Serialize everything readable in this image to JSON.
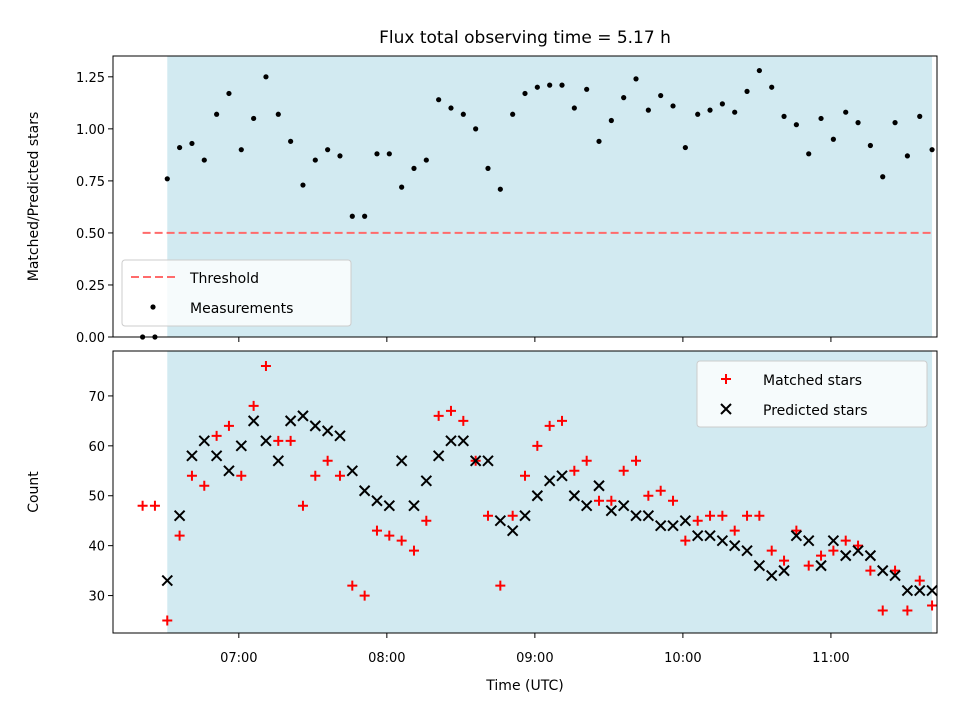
{
  "title": "Flux total observing time = 5.17 h",
  "colors": {
    "shade": "#add8e6",
    "threshold": "#ff6b6b",
    "matched": "#ff0000",
    "predicted": "#000000"
  },
  "chart_data": [
    {
      "type": "scatter",
      "ylabel": "Matched/Predicted stars",
      "xlabel": "",
      "xlim": [
        "06:09",
        "11:43"
      ],
      "ylim": [
        0,
        1.35
      ],
      "yticks": [
        "0.00",
        "0.25",
        "0.50",
        "0.75",
        "1.00",
        "1.25"
      ],
      "xticks": [
        "07:00",
        "08:00",
        "09:00",
        "10:00",
        "11:00"
      ],
      "observing_window": [
        "06:31",
        "11:41"
      ],
      "legend": {
        "location": "lower-left",
        "threshold_label": "Threshold",
        "measurements_label": "Measurements"
      },
      "threshold": {
        "value": 0.5,
        "x_start": "06:21",
        "x_end": "11:41"
      },
      "series": [
        {
          "name": "Measurements",
          "points": [
            [
              "06:21",
              0.0
            ],
            [
              "06:26",
              0.0
            ],
            [
              "06:31",
              0.76
            ],
            [
              "06:36",
              0.91
            ],
            [
              "06:41",
              0.93
            ],
            [
              "06:46",
              0.85
            ],
            [
              "06:51",
              1.07
            ],
            [
              "06:56",
              1.17
            ],
            [
              "07:01",
              0.9
            ],
            [
              "07:06",
              1.05
            ],
            [
              "07:11",
              1.25
            ],
            [
              "07:16",
              1.07
            ],
            [
              "07:21",
              0.94
            ],
            [
              "07:26",
              0.73
            ],
            [
              "07:31",
              0.85
            ],
            [
              "07:36",
              0.9
            ],
            [
              "07:41",
              0.87
            ],
            [
              "07:46",
              0.58
            ],
            [
              "07:51",
              0.58
            ],
            [
              "07:56",
              0.88
            ],
            [
              "08:01",
              0.88
            ],
            [
              "08:06",
              0.72
            ],
            [
              "08:11",
              0.81
            ],
            [
              "08:16",
              0.85
            ],
            [
              "08:21",
              1.14
            ],
            [
              "08:26",
              1.1
            ],
            [
              "08:31",
              1.07
            ],
            [
              "08:36",
              1.0
            ],
            [
              "08:41",
              0.81
            ],
            [
              "08:46",
              0.71
            ],
            [
              "08:51",
              1.07
            ],
            [
              "08:56",
              1.17
            ],
            [
              "09:01",
              1.2
            ],
            [
              "09:06",
              1.21
            ],
            [
              "09:11",
              1.21
            ],
            [
              "09:16",
              1.1
            ],
            [
              "09:21",
              1.19
            ],
            [
              "09:26",
              0.94
            ],
            [
              "09:31",
              1.04
            ],
            [
              "09:36",
              1.15
            ],
            [
              "09:41",
              1.24
            ],
            [
              "09:46",
              1.09
            ],
            [
              "09:51",
              1.16
            ],
            [
              "09:56",
              1.11
            ],
            [
              "10:01",
              0.91
            ],
            [
              "10:06",
              1.07
            ],
            [
              "10:11",
              1.09
            ],
            [
              "10:16",
              1.12
            ],
            [
              "10:21",
              1.08
            ],
            [
              "10:26",
              1.18
            ],
            [
              "10:31",
              1.28
            ],
            [
              "10:36",
              1.2
            ],
            [
              "10:41",
              1.06
            ],
            [
              "10:46",
              1.02
            ],
            [
              "10:51",
              0.88
            ],
            [
              "10:56",
              1.05
            ],
            [
              "11:01",
              0.95
            ],
            [
              "11:06",
              1.08
            ],
            [
              "11:11",
              1.03
            ],
            [
              "11:16",
              0.92
            ],
            [
              "11:21",
              0.77
            ],
            [
              "11:26",
              1.03
            ],
            [
              "11:31",
              0.87
            ],
            [
              "11:36",
              1.06
            ],
            [
              "11:41",
              0.9
            ]
          ]
        }
      ]
    },
    {
      "type": "scatter",
      "ylabel": "Count",
      "xlabel": "Time (UTC)",
      "xlim": [
        "06:09",
        "11:43"
      ],
      "ylim": [
        22.5,
        79
      ],
      "yticks": [
        "30",
        "40",
        "50",
        "60",
        "70"
      ],
      "xticks": [
        "07:00",
        "08:00",
        "09:00",
        "10:00",
        "11:00"
      ],
      "observing_window": [
        "06:31",
        "11:41"
      ],
      "legend": {
        "location": "top-right"
      },
      "series": [
        {
          "name": "Matched stars",
          "marker": "plus",
          "points": [
            [
              "06:21",
              48
            ],
            [
              "06:26",
              48
            ],
            [
              "06:31",
              25
            ],
            [
              "06:36",
              42
            ],
            [
              "06:41",
              54
            ],
            [
              "06:46",
              52
            ],
            [
              "06:51",
              62
            ],
            [
              "06:56",
              64
            ],
            [
              "07:01",
              54
            ],
            [
              "07:06",
              68
            ],
            [
              "07:11",
              76
            ],
            [
              "07:16",
              61
            ],
            [
              "07:21",
              61
            ],
            [
              "07:26",
              48
            ],
            [
              "07:31",
              54
            ],
            [
              "07:36",
              57
            ],
            [
              "07:41",
              54
            ],
            [
              "07:46",
              32
            ],
            [
              "07:51",
              30
            ],
            [
              "07:56",
              43
            ],
            [
              "08:01",
              42
            ],
            [
              "08:06",
              41
            ],
            [
              "08:11",
              39
            ],
            [
              "08:16",
              45
            ],
            [
              "08:21",
              66
            ],
            [
              "08:26",
              67
            ],
            [
              "08:31",
              65
            ],
            [
              "08:36",
              57
            ],
            [
              "08:41",
              46
            ],
            [
              "08:46",
              32
            ],
            [
              "08:51",
              46
            ],
            [
              "08:56",
              54
            ],
            [
              "09:01",
              60
            ],
            [
              "09:06",
              64
            ],
            [
              "09:11",
              65
            ],
            [
              "09:16",
              55
            ],
            [
              "09:21",
              57
            ],
            [
              "09:26",
              49
            ],
            [
              "09:31",
              49
            ],
            [
              "09:36",
              55
            ],
            [
              "09:41",
              57
            ],
            [
              "09:46",
              50
            ],
            [
              "09:51",
              51
            ],
            [
              "09:56",
              49
            ],
            [
              "10:01",
              41
            ],
            [
              "10:06",
              45
            ],
            [
              "10:11",
              46
            ],
            [
              "10:16",
              46
            ],
            [
              "10:21",
              43
            ],
            [
              "10:26",
              46
            ],
            [
              "10:31",
              46
            ],
            [
              "10:36",
              39
            ],
            [
              "10:41",
              37
            ],
            [
              "10:46",
              43
            ],
            [
              "10:51",
              36
            ],
            [
              "10:56",
              38
            ],
            [
              "11:01",
              39
            ],
            [
              "11:06",
              41
            ],
            [
              "11:11",
              40
            ],
            [
              "11:16",
              35
            ],
            [
              "11:21",
              27
            ],
            [
              "11:26",
              35
            ],
            [
              "11:31",
              27
            ],
            [
              "11:36",
              33
            ],
            [
              "11:41",
              28
            ]
          ]
        },
        {
          "name": "Predicted stars",
          "marker": "x",
          "points": [
            [
              "06:31",
              33
            ],
            [
              "06:36",
              46
            ],
            [
              "06:41",
              58
            ],
            [
              "06:46",
              61
            ],
            [
              "06:51",
              58
            ],
            [
              "06:56",
              55
            ],
            [
              "07:01",
              60
            ],
            [
              "07:06",
              65
            ],
            [
              "07:11",
              61
            ],
            [
              "07:16",
              57
            ],
            [
              "07:21",
              65
            ],
            [
              "07:26",
              66
            ],
            [
              "07:31",
              64
            ],
            [
              "07:36",
              63
            ],
            [
              "07:41",
              62
            ],
            [
              "07:46",
              55
            ],
            [
              "07:51",
              51
            ],
            [
              "07:56",
              49
            ],
            [
              "08:01",
              48
            ],
            [
              "08:06",
              57
            ],
            [
              "08:11",
              48
            ],
            [
              "08:16",
              53
            ],
            [
              "08:21",
              58
            ],
            [
              "08:26",
              61
            ],
            [
              "08:31",
              61
            ],
            [
              "08:36",
              57
            ],
            [
              "08:41",
              57
            ],
            [
              "08:46",
              45
            ],
            [
              "08:51",
              43
            ],
            [
              "08:56",
              46
            ],
            [
              "09:01",
              50
            ],
            [
              "09:06",
              53
            ],
            [
              "09:11",
              54
            ],
            [
              "09:16",
              50
            ],
            [
              "09:21",
              48
            ],
            [
              "09:26",
              52
            ],
            [
              "09:31",
              47
            ],
            [
              "09:36",
              48
            ],
            [
              "09:41",
              46
            ],
            [
              "09:46",
              46
            ],
            [
              "09:51",
              44
            ],
            [
              "09:56",
              44
            ],
            [
              "10:01",
              45
            ],
            [
              "10:06",
              42
            ],
            [
              "10:11",
              42
            ],
            [
              "10:16",
              41
            ],
            [
              "10:21",
              40
            ],
            [
              "10:26",
              39
            ],
            [
              "10:31",
              36
            ],
            [
              "10:36",
              34
            ],
            [
              "10:41",
              35
            ],
            [
              "10:46",
              42
            ],
            [
              "10:51",
              41
            ],
            [
              "10:56",
              36
            ],
            [
              "11:01",
              41
            ],
            [
              "11:06",
              38
            ],
            [
              "11:11",
              39
            ],
            [
              "11:16",
              38
            ],
            [
              "11:21",
              35
            ],
            [
              "11:26",
              34
            ],
            [
              "11:31",
              31
            ],
            [
              "11:36",
              31
            ],
            [
              "11:41",
              31
            ]
          ]
        }
      ]
    }
  ]
}
